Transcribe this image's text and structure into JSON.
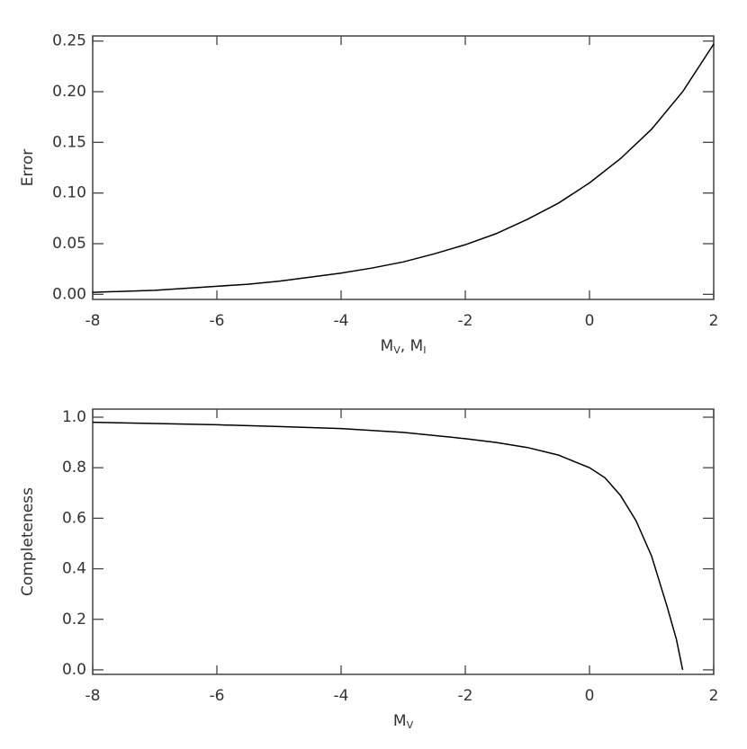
{
  "chart_data": [
    {
      "type": "line",
      "ylabel": "Error",
      "xlabel": [
        {
          "text": "M",
          "sub": "V"
        },
        {
          "text": ",  M",
          "sub": "I"
        }
      ],
      "x": [
        -8,
        -7.5,
        -7,
        -6.5,
        -6,
        -5.5,
        -5,
        -4.5,
        -4,
        -3.5,
        -3,
        -2.5,
        -2,
        -1.5,
        -1,
        -0.5,
        0,
        0.5,
        1,
        1.5,
        2
      ],
      "values": [
        0.002,
        0.003,
        0.004,
        0.006,
        0.008,
        0.01,
        0.013,
        0.017,
        0.021,
        0.026,
        0.032,
        0.04,
        0.049,
        0.06,
        0.074,
        0.09,
        0.11,
        0.134,
        0.163,
        0.2,
        0.247
      ],
      "color": "#000000",
      "xlim": [
        -8,
        2
      ],
      "ylim": [
        -0.005,
        0.255
      ],
      "xticks": [
        -8,
        -6,
        -4,
        -2,
        0,
        2
      ],
      "yticks": [
        {
          "value": 0,
          "label": "0.00"
        },
        {
          "value": 0.05,
          "label": "0.05"
        },
        {
          "value": 0.1,
          "label": "0.10"
        },
        {
          "value": 0.15,
          "label": "0.15"
        },
        {
          "value": 0.2,
          "label": "0.20"
        },
        {
          "value": 0.25,
          "label": "0.25"
        }
      ]
    },
    {
      "type": "line",
      "ylabel": "Completeness",
      "xlabel": [
        {
          "text": "M",
          "sub": "V"
        }
      ],
      "x": [
        -8,
        -7,
        -6,
        -5,
        -4,
        -3,
        -2,
        -1.5,
        -1,
        -0.5,
        0,
        0.25,
        0.5,
        0.75,
        1,
        1.25,
        1.4,
        1.5
      ],
      "values": [
        0.98,
        0.975,
        0.97,
        0.963,
        0.955,
        0.94,
        0.915,
        0.9,
        0.88,
        0.85,
        0.8,
        0.76,
        0.69,
        0.59,
        0.45,
        0.25,
        0.12,
        0.0
      ],
      "color": "#000000",
      "xlim": [
        -8,
        2
      ],
      "ylim": [
        -0.018,
        1.032
      ],
      "xticks": [
        -8,
        -6,
        -4,
        -2,
        0,
        2
      ],
      "yticks": [
        {
          "value": 0,
          "label": "0.0"
        },
        {
          "value": 0.2,
          "label": "0.2"
        },
        {
          "value": 0.4,
          "label": "0.4"
        },
        {
          "value": 0.6,
          "label": "0.6"
        },
        {
          "value": 0.8,
          "label": "0.8"
        },
        {
          "value": 1,
          "label": "1.0"
        }
      ]
    }
  ]
}
